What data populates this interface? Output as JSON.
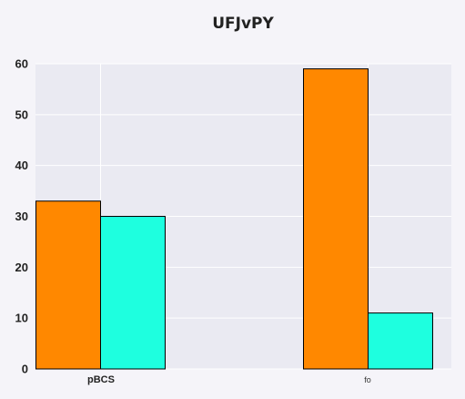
{
  "chart_data": {
    "type": "bar",
    "title": "UFJvPY",
    "xlabel": "",
    "ylabel": "",
    "categories": [
      "pBCS",
      "fo"
    ],
    "series": [
      {
        "values": [
          33,
          59
        ],
        "color": "#ff8800"
      },
      {
        "values": [
          30,
          11
        ],
        "color": "#1effdf"
      }
    ],
    "ylim": [
      0,
      60
    ],
    "yticks": [
      0,
      10,
      20,
      30,
      40,
      50,
      60
    ],
    "grid": true,
    "legend": "none",
    "background": "#eaeaf2",
    "page_background": "#f5f4f9"
  }
}
